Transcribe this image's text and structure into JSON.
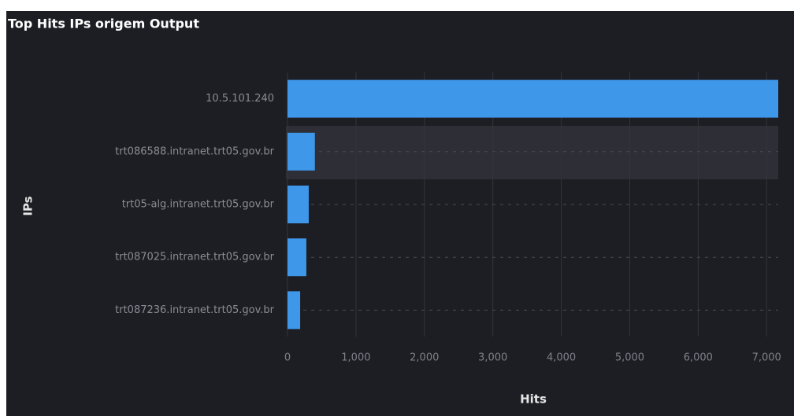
{
  "chart_data": {
    "type": "bar",
    "orientation": "horizontal",
    "title": "Top Hits IPs origem Output",
    "categories": [
      "10.5.101.240",
      "trt086588.intranet.trt05.gov.br",
      "trt05-alg.intranet.trt05.gov.br",
      "trt087025.intranet.trt05.gov.br",
      "trt087236.intranet.trt05.gov.br"
    ],
    "values": [
      7170,
      400,
      310,
      275,
      185
    ],
    "color": "#3f97ea",
    "xlim": [
      0,
      7170
    ],
    "xticks": [
      0,
      {
        "value": 1000,
        "label": "1,000"
      },
      {
        "value": 2000,
        "label": "2,000"
      },
      {
        "value": 3000,
        "label": "3,000"
      },
      {
        "value": 4000,
        "label": "4,000"
      },
      {
        "value": 5000,
        "label": "5,000"
      },
      {
        "value": 6000,
        "label": "6,000"
      },
      {
        "value": 7000,
        "label": "7,000"
      }
    ],
    "x_label": "Hits",
    "y_label": "IPs",
    "grid": true
  }
}
